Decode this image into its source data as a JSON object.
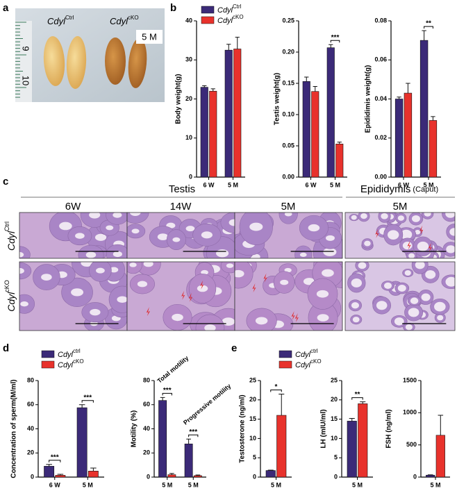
{
  "panel_labels": [
    "a",
    "b",
    "c",
    "d",
    "e"
  ],
  "photo": {
    "groups": [
      {
        "name": "Cdyl",
        "superscript": "Ctrl"
      },
      {
        "name": "Cdyl",
        "superscript": "cKO"
      }
    ],
    "age": "5 M",
    "ruler_labels": [
      "9",
      "10"
    ]
  },
  "histology": {
    "tissues": [
      "Testis",
      "Epididymis"
    ],
    "tissue_note": "(Caput)",
    "columns": [
      "6W",
      "14W",
      "5M",
      "5M"
    ],
    "rows": [
      {
        "name": "Cdyl",
        "superscript": "Ctrl"
      },
      {
        "name": "Cdyl",
        "superscript": "cKO"
      }
    ]
  },
  "chart_data": [
    {
      "type": "bar",
      "ylabel": "Body weight(g)",
      "categories": [
        "6 W",
        "5 M"
      ],
      "legend": true,
      "series": [
        {
          "name": "Cdyl",
          "superscript": "Ctrl",
          "color": "#3b2a78",
          "values": [
            23,
            32.5
          ],
          "errors": [
            0.4,
            1.5
          ]
        },
        {
          "name": "Cdyl",
          "superscript": "cKO",
          "color": "#e8322c",
          "values": [
            22,
            32.8
          ],
          "errors": [
            0.6,
            3
          ]
        }
      ],
      "ylim": [
        0,
        40
      ],
      "yticks": [
        0,
        10,
        20,
        30,
        40
      ],
      "significance": [
        null,
        null
      ]
    },
    {
      "type": "bar",
      "ylabel": "Testis weight(g)",
      "categories": [
        "6 W",
        "5 M"
      ],
      "series": [
        {
          "name": "Cdyl",
          "superscript": "Ctrl",
          "color": "#3b2a78",
          "values": [
            0.153,
            0.207
          ],
          "errors": [
            0.007,
            0.005
          ]
        },
        {
          "name": "Cdyl",
          "superscript": "cKO",
          "color": "#e8322c",
          "values": [
            0.137,
            0.053
          ],
          "errors": [
            0.008,
            0.003
          ]
        }
      ],
      "ylim": [
        0,
        0.25
      ],
      "yticks": [
        {
          "value": 0,
          "label": "0.00"
        },
        {
          "value": 0.05,
          "label": "0.05"
        },
        {
          "value": 0.1,
          "label": "0.10"
        },
        {
          "value": 0.15,
          "label": "0.15"
        },
        {
          "value": 0.2,
          "label": "0.20"
        },
        {
          "value": 0.25,
          "label": "0.25"
        }
      ],
      "significance": [
        null,
        "***"
      ]
    },
    {
      "type": "bar",
      "ylabel": "Epididimis weight(g)",
      "categories": [
        "6 W",
        "5 M"
      ],
      "series": [
        {
          "name": "Cdyl",
          "superscript": "Ctrl",
          "color": "#3b2a78",
          "values": [
            0.04,
            0.07
          ],
          "errors": [
            0.001,
            0.005
          ]
        },
        {
          "name": "Cdyl",
          "superscript": "cKO",
          "color": "#e8322c",
          "values": [
            0.043,
            0.029
          ],
          "errors": [
            0.005,
            0.002
          ]
        }
      ],
      "ylim": [
        0,
        0.08
      ],
      "yticks": [
        {
          "value": 0,
          "label": "0.00"
        },
        {
          "value": 0.02,
          "label": "0.02"
        },
        {
          "value": 0.04,
          "label": "0.04"
        },
        {
          "value": 0.06,
          "label": "0.06"
        },
        {
          "value": 0.08,
          "label": "0.08"
        }
      ],
      "significance": [
        null,
        "**"
      ]
    },
    {
      "type": "bar",
      "ylabel": "Concentration of sperm(M/ml)",
      "categories": [
        "6 W",
        "5 M"
      ],
      "legend": true,
      "series": [
        {
          "name": "Cdyl",
          "superscript": "ctrl",
          "color": "#3b2a78",
          "values": [
            9,
            57.5
          ],
          "errors": [
            1.5,
            2.5
          ]
        },
        {
          "name": "Cdyl",
          "superscript": "cKO",
          "color": "#e8322c",
          "values": [
            1.5,
            5
          ],
          "errors": [
            0.8,
            2.5
          ]
        }
      ],
      "ylim": [
        0,
        80
      ],
      "yticks": [
        0,
        20,
        40,
        60,
        80
      ],
      "significance": [
        "***",
        "***"
      ]
    },
    {
      "type": "bar",
      "ylabel": "Motility (%)",
      "categories": [
        "5 M",
        "5 M"
      ],
      "series": [
        {
          "name": "Cdyl",
          "superscript": "ctrl",
          "color": "#3b2a78",
          "values": [
            63.5,
            27.5
          ],
          "errors": [
            2.5,
            4
          ]
        },
        {
          "name": "Cdyl",
          "superscript": "cKO",
          "color": "#e8322c",
          "values": [
            2,
            1.2
          ],
          "errors": [
            1,
            0.5
          ]
        }
      ],
      "ylim": [
        0,
        80
      ],
      "yticks": [
        0,
        20,
        40,
        60,
        80
      ],
      "significance": [
        "***",
        "***"
      ],
      "annotations": [
        "Total motility",
        "Progressive motility"
      ]
    },
    {
      "type": "bar",
      "ylabel": "Testosterone (ng/ml)",
      "categories": [
        "5 M"
      ],
      "legend": true,
      "series": [
        {
          "name": "Cdyl",
          "superscript": "ctrl",
          "color": "#3b2a78",
          "values": [
            1.7
          ],
          "errors": [
            0.1
          ]
        },
        {
          "name": "Cdyl",
          "superscript": "cKO",
          "color": "#e8322c",
          "values": [
            16
          ],
          "errors": [
            5.5
          ]
        }
      ],
      "ylim": [
        0,
        25
      ],
      "yticks": [
        0,
        5,
        10,
        15,
        20,
        25
      ],
      "significance": [
        "*"
      ]
    },
    {
      "type": "bar",
      "ylabel": "LH (mIU/ml)",
      "categories": [
        "5 M"
      ],
      "series": [
        {
          "name": "Cdyl",
          "superscript": "ctrl",
          "color": "#3b2a78",
          "values": [
            14.5
          ],
          "errors": [
            0.7
          ]
        },
        {
          "name": "Cdyl",
          "superscript": "cKO",
          "color": "#e8322c",
          "values": [
            19
          ],
          "errors": [
            0.5
          ]
        }
      ],
      "ylim": [
        0,
        25
      ],
      "yticks": [
        0,
        5,
        10,
        15,
        20,
        25
      ],
      "significance": [
        "**"
      ]
    },
    {
      "type": "bar",
      "ylabel": "FSH (ng/ml)",
      "categories": [
        "5 M"
      ],
      "series": [
        {
          "name": "Cdyl",
          "superscript": "ctrl",
          "color": "#3b2a78",
          "values": [
            30
          ],
          "errors": [
            5
          ]
        },
        {
          "name": "Cdyl",
          "superscript": "cKO",
          "color": "#e8322c",
          "values": [
            650
          ],
          "errors": [
            310
          ]
        }
      ],
      "ylim": [
        0,
        1500
      ],
      "yticks": [
        0,
        500,
        1000,
        1500
      ],
      "significance": [
        null
      ]
    }
  ]
}
